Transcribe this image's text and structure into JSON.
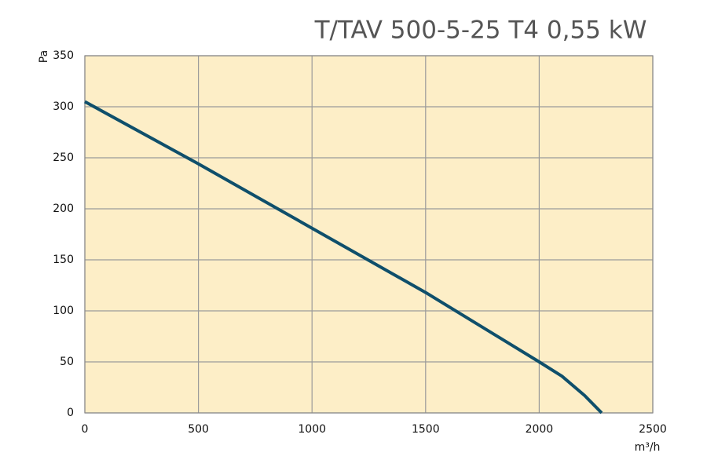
{
  "chart_data": {
    "type": "line",
    "title": "T/TAV  500-5-25 T4  0,55 kW",
    "y_label": "Pa",
    "x_label": "m³/h",
    "x": [
      0,
      500,
      1000,
      1500,
      2000,
      2100,
      2200,
      2275
    ],
    "series": [
      {
        "name": "T/TAV 500-5-25 T4",
        "color": "#0f4f6b",
        "values": [
          305,
          244,
          181,
          118,
          50,
          36,
          17,
          0
        ]
      }
    ],
    "xlim": [
      0,
      2500
    ],
    "xticks": [
      0,
      500,
      1000,
      1500,
      2000,
      2500
    ],
    "ylim": [
      0,
      350
    ],
    "yticks": [
      0,
      50,
      100,
      150,
      200,
      250,
      300,
      350
    ],
    "grid": true,
    "plot_background": "#fdeec7"
  }
}
